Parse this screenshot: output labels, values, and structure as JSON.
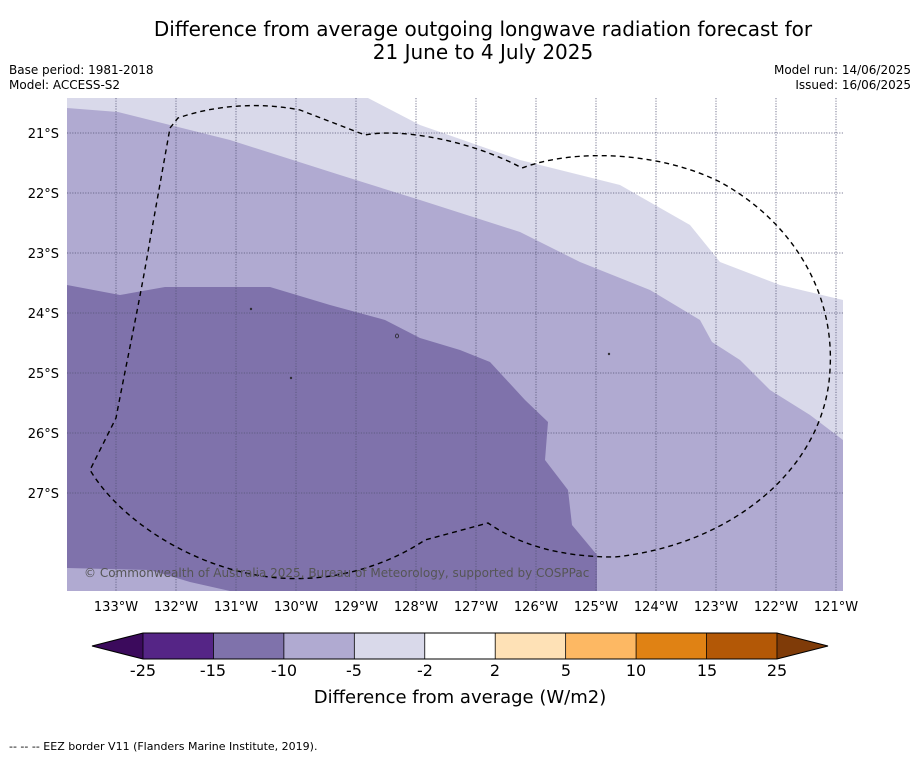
{
  "title_line1": "Difference from average outgoing longwave radiation forecast for",
  "title_line2": "21 June to 4 July 2025",
  "base_period": "Base period: 1981-2018",
  "model": "Model: ACCESS-S2",
  "model_run": "Model run: 14/06/2025",
  "issued": "Issued: 16/06/2025",
  "map": {
    "lat_labels": [
      "21°S",
      "22°S",
      "23°S",
      "24°S",
      "25°S",
      "26°S",
      "27°S"
    ],
    "lon_labels": [
      "133°W",
      "132°W",
      "131°W",
      "130°W",
      "129°W",
      "128°W",
      "127°W",
      "126°W",
      "125°W",
      "124°W",
      "123°W",
      "122°W",
      "121°W"
    ],
    "copyright": "© Commonwealth of Australia 2025, Bureau of Meteorology, supported by COSPPac",
    "region_colors": {
      "-15_to_-10": "#7f72ab",
      "-10_to_-5": "#b0aad1",
      "-5_to_-2": "#d9d9ea",
      "-2_to_2": "#ffffff"
    }
  },
  "colorbar": {
    "ticks": [
      "-25",
      "-15",
      "-10",
      "-5",
      "-2",
      "2",
      "5",
      "10",
      "15",
      "25"
    ],
    "colors": [
      "#3b0a5c",
      "#552586",
      "#7f72ab",
      "#b0aad1",
      "#d9d9ea",
      "#ffffff",
      "#fee1b6",
      "#fdb863",
      "#e08214",
      "#b35806",
      "#7f3b08"
    ],
    "label": "Difference from average (W/m2)"
  },
  "footer": "--  --  -- EEZ border V11 (Flanders Marine Institute, 2019)."
}
